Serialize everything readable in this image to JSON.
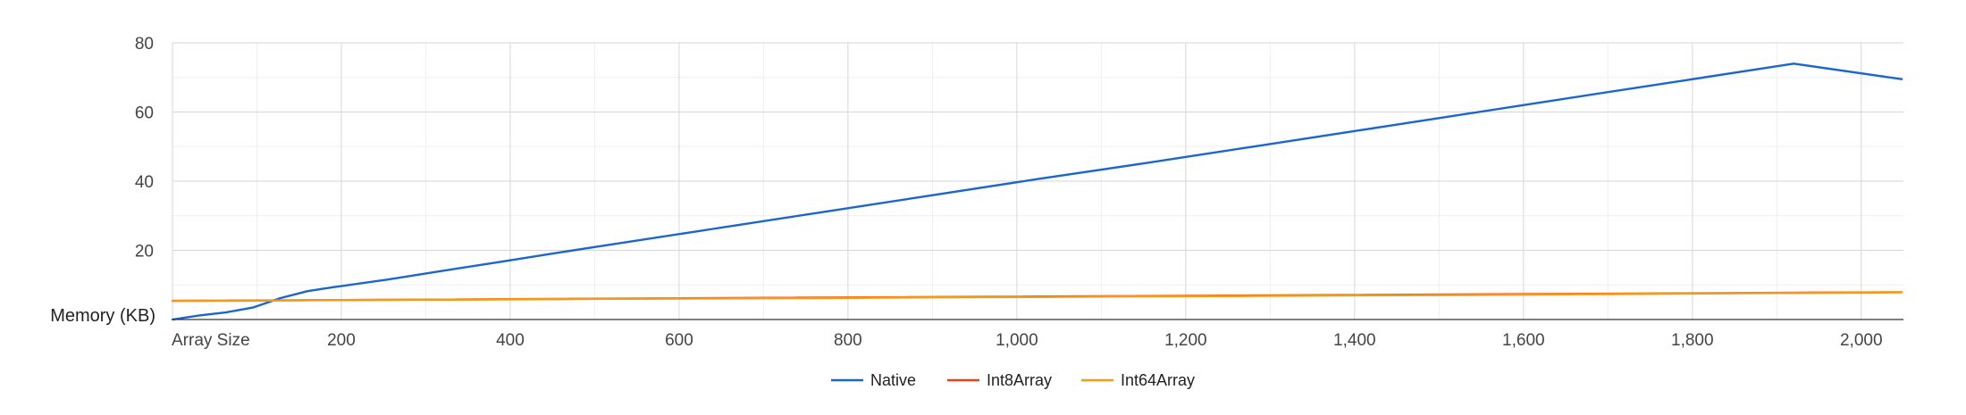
{
  "chart_data": {
    "type": "line",
    "title": "",
    "xlabel": "Array Size",
    "ylabel": "Memory (KB)",
    "xlim": [
      0,
      2050
    ],
    "ylim": [
      0,
      80
    ],
    "x_ticks": [
      200,
      400,
      600,
      800,
      1000,
      1200,
      1400,
      1600,
      1800,
      2000
    ],
    "x_tick_labels": [
      "200",
      "400",
      "600",
      "800",
      "1,000",
      "1,200",
      "1,400",
      "1,600",
      "1,800",
      "2,000"
    ],
    "y_ticks": [
      20,
      40,
      60,
      80
    ],
    "y_tick_labels": [
      "20",
      "40",
      "60",
      "80"
    ],
    "grid": true,
    "minor_grid": true,
    "legend_position": "bottom",
    "series": [
      {
        "name": "Native",
        "color": "#1a66cc",
        "x": [
          0,
          32,
          64,
          96,
          128,
          160,
          192,
          256,
          320,
          384,
          448,
          512,
          640,
          768,
          896,
          1024,
          1152,
          1280,
          1408,
          1536,
          1664,
          1792,
          1920,
          2048
        ],
        "y": [
          0,
          1.2,
          2.1,
          3.5,
          6.2,
          8.2,
          9.4,
          11.6,
          14.1,
          16.5,
          19.0,
          21.4,
          26.2,
          31.0,
          35.8,
          40.6,
          45.2,
          50.0,
          54.8,
          59.6,
          64.4,
          69.2,
          74.0,
          69.5
        ]
      },
      {
        "name": "Int8Array",
        "color": "#e8401c",
        "x": [
          0,
          2048
        ],
        "y": [
          5.4,
          7.9
        ]
      },
      {
        "name": "Int64Array",
        "color": "#f59a14",
        "x": [
          0,
          64,
          128,
          192,
          256,
          384,
          512,
          640,
          768,
          896,
          1024,
          1152,
          1280,
          1408,
          1536,
          1664,
          1792,
          1920,
          2048
        ],
        "y": [
          5.4,
          5.4,
          5.5,
          5.6,
          5.7,
          5.8,
          6.0,
          6.1,
          6.2,
          6.4,
          6.5,
          6.7,
          6.8,
          7.0,
          7.1,
          7.3,
          7.5,
          7.7,
          7.9
        ]
      }
    ]
  }
}
